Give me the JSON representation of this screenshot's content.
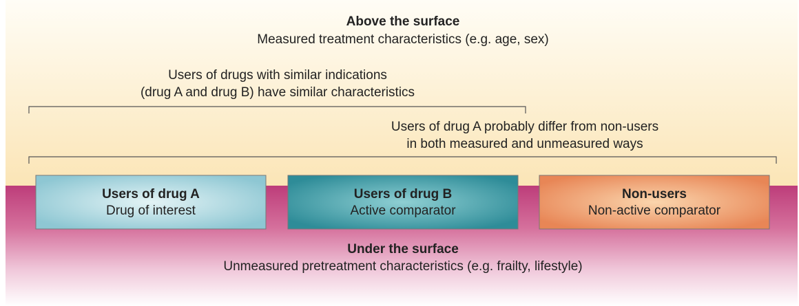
{
  "top": {
    "title": "Above the surface",
    "subtitle": "Measured treatment characteristics (e.g. age, sex)"
  },
  "brackets": [
    {
      "lines": [
        "Users of drugs with similar indications",
        "(drug A and drug B) have similar characteristics"
      ]
    },
    {
      "lines": [
        "Users of drug A probably differ from non-users",
        "in both measured and unmeasured ways"
      ]
    }
  ],
  "groups": [
    {
      "title": "Users of drug A",
      "subtitle": "Drug of interest"
    },
    {
      "title": "Users of drug B",
      "subtitle": "Active comparator"
    },
    {
      "title": "Non-users",
      "subtitle": "Non-active comparator"
    }
  ],
  "bottom": {
    "title": "Under the surface",
    "subtitle": "Unmeasured pretreatment characteristics (e.g. frailty, lifestyle)"
  }
}
